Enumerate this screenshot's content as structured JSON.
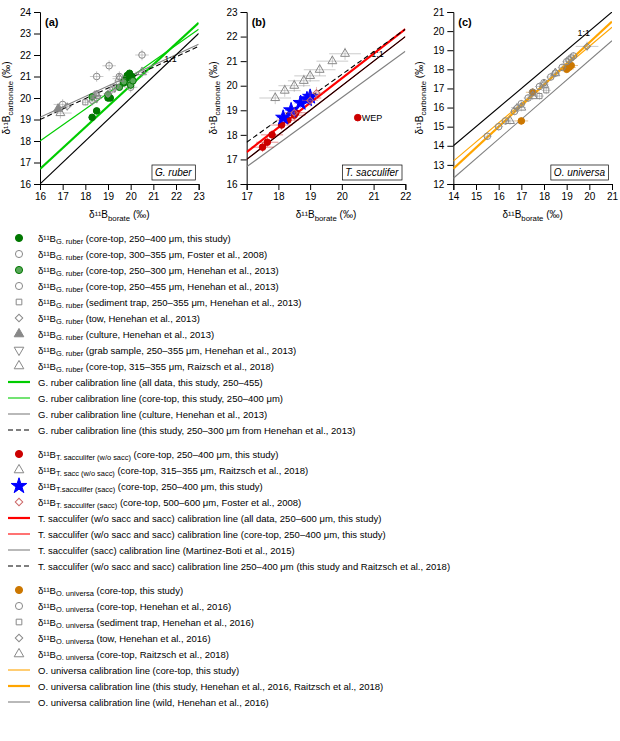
{
  "chart_data": [
    {
      "type": "scatter",
      "title": "(a)",
      "subtitle": "G. ruber",
      "x_label": "δ¹¹Bborate (‰)",
      "y_label": "δ¹¹Bcarbonate (‰)",
      "xlim": [
        16,
        23
      ],
      "ylim": [
        16,
        24
      ],
      "xticks": [
        16,
        17,
        18,
        19,
        20,
        21,
        22,
        23
      ],
      "yticks": [
        16,
        17,
        18,
        19,
        20,
        21,
        22,
        23,
        24
      ],
      "legend": "bottom",
      "annotations": [
        {
          "text": "1:1",
          "x": 21.3,
          "y": 21.8
        }
      ],
      "series": [
        {
          "name": "δ¹¹BG. ruber (core-top, 250–400 μm, this study)",
          "color": "#007700",
          "marker": "circle",
          "x": [
            18.3,
            18.5,
            19.0,
            19.1,
            19.7,
            19.75,
            19.8,
            19.85,
            19.95,
            20.05
          ],
          "values": [
            19.1,
            19.4,
            20.0,
            20.0,
            20.7,
            20.85,
            20.9,
            21.05,
            21.15,
            21.0
          ],
          "x_err": [
            0.15,
            0.15,
            0.15,
            0.15,
            0.15,
            0.15,
            0.15,
            0.15,
            0.15,
            0.15
          ],
          "y_err": [
            0.15,
            0.15,
            0.15,
            0.15,
            0.15,
            0.15,
            0.15,
            0.15,
            0.15,
            0.15
          ]
        },
        {
          "name": "δ¹¹BG. ruber (core-top, 300–355 μm, Foster et al., 2008)",
          "color": "#888888",
          "marker": "circle-open",
          "x": [
            18.5,
            19.05,
            19.5,
            20.5,
            17.0,
            20.0
          ],
          "values": [
            21.0,
            21.5,
            21.0,
            22.0,
            19.7,
            20.5
          ],
          "x_err": [
            0.3,
            0.3,
            0.3,
            0.3,
            0.4,
            0.3
          ],
          "y_err": [
            0.25,
            0.25,
            0.25,
            0.25,
            0.25,
            0.25
          ]
        },
        {
          "name": "δ¹¹BG. ruber (core-top, 250–300 μm, Henehan et al., 2013)",
          "color": "#007700",
          "marker": "circle-light",
          "x": [
            18.3,
            19.0,
            19.5,
            19.7,
            20.0,
            20.1
          ],
          "values": [
            20.05,
            20.15,
            20.5,
            20.75,
            20.6,
            20.8
          ],
          "x_err": [
            0.15,
            0.15,
            0.15,
            0.15,
            0.15,
            0.15
          ],
          "y_err": [
            0.15,
            0.15,
            0.15,
            0.15,
            0.15,
            0.15
          ]
        },
        {
          "name": "δ¹¹BG. ruber (core-top, 250–455 μm, Henehan et al., 2013)",
          "color": "#888888",
          "marker": "circle-open",
          "x": [],
          "values": []
        },
        {
          "name": "δ¹¹BG. ruber (sediment trap, 250–355 μm, Henehan et al., 2013)",
          "color": "#888888",
          "marker": "square-open",
          "x": [
            18.0,
            18.5,
            19.2
          ],
          "values": [
            19.8,
            20.2,
            20.4
          ],
          "x_err": [
            0.15,
            0.15,
            0.15
          ],
          "y_err": [
            0.15,
            0.15,
            0.15
          ]
        },
        {
          "name": "δ¹¹BG. ruber (tow, Henehan et al., 2013)",
          "color": "#888888",
          "marker": "diamond-open",
          "x": [
            17.2,
            18.3,
            19.0
          ],
          "values": [
            19.6,
            19.85,
            20.2
          ],
          "x_err": [
            0.2,
            0.2,
            0.2
          ],
          "y_err": [
            0.2,
            0.2,
            0.2
          ]
        },
        {
          "name": "δ¹¹BG. ruber (culture, Henehan et al., 2013)",
          "color": "#888888",
          "marker": "triangle",
          "x": [
            16.8
          ],
          "values": [
            19.5
          ]
        },
        {
          "name": "δ¹¹BG. ruber (grab sample, 250–355 μm, Henehan et al., 2013)",
          "color": "#888888",
          "marker": "triangle-down-open",
          "x": [
            18.5,
            19.3
          ],
          "values": [
            20.0,
            20.5
          ],
          "x_err": [
            0.2,
            0.2
          ],
          "y_err": [
            0.2,
            0.2
          ]
        },
        {
          "name": "δ¹¹BG. ruber (core-top, 315–355 μm, Raizsch et al., 2018)",
          "color": "#888888",
          "marker": "triangle-open",
          "x": [
            16.9,
            18.5,
            19.5,
            20.5
          ],
          "values": [
            19.3,
            20.1,
            20.9,
            21.2
          ],
          "x_err": [
            0.5,
            0.3,
            0.3,
            0.3
          ],
          "y_err": [
            0.25,
            0.25,
            0.25,
            0.25
          ]
        },
        {
          "name": "G. ruber calibration line (all data, this study, 250–455)",
          "type": "line",
          "color": "#00cc00",
          "line_style": "thick",
          "x": [
            16,
            23
          ],
          "values": [
            16.7,
            23.5
          ]
        },
        {
          "name": "G. ruber calibration line (core-top, this study, 250–400 μm)",
          "type": "line",
          "color": "#00cc00",
          "line_style": "solid",
          "x": [
            16,
            23
          ],
          "values": [
            18.0,
            23.2
          ]
        },
        {
          "name": "G. ruber calibration line (culture, Henehan et al., 2013)",
          "type": "line",
          "color": "gray",
          "line_style": "solid",
          "x": [
            16,
            23
          ],
          "values": [
            19.1,
            22.5
          ]
        },
        {
          "name": "G. ruber calibration line (this study, 250–300 μm from Henehan et al., 2013)",
          "type": "line",
          "color": "black",
          "line_style": "dashed",
          "x": [
            16,
            23
          ],
          "values": [
            19.0,
            22.4
          ]
        },
        {
          "type": "line",
          "color": "black",
          "line_style": "solid",
          "x": [
            16,
            23
          ],
          "values": [
            16,
            23
          ]
        }
      ]
    },
    {
      "type": "scatter",
      "title": "(b)",
      "subtitle": "T. sacculifer",
      "x_label": "δ¹¹Bborate (‰)",
      "y_label": "δ¹¹Bcarbonate (‰)",
      "xlim": [
        17,
        22
      ],
      "ylim": [
        16,
        23
      ],
      "xticks": [
        17,
        18,
        19,
        20,
        21,
        22
      ],
      "yticks": [
        16,
        17,
        18,
        19,
        20,
        21,
        22,
        23
      ],
      "legend": "bottom",
      "annotations": [
        {
          "text": "1:1",
          "x": 20.8,
          "y": 21.3
        },
        {
          "text": "WEP",
          "x": 20.5,
          "y": 18.7
        }
      ],
      "series": [
        {
          "name": "δ¹¹BT. sacculifer (w/o sacc) (core-top, 250–400 μm, this study)",
          "color": "#cc0000",
          "marker": "circle",
          "x": [
            17.5,
            17.65,
            17.8,
            18.1,
            18.3,
            18.5,
            18.55,
            19.0
          ],
          "values": [
            17.5,
            17.7,
            18.0,
            18.4,
            18.6,
            18.8,
            18.9,
            19.5
          ],
          "x_err": [
            0.35,
            0.35,
            0.35,
            0.35,
            0.35,
            0.35,
            0.35,
            0.35
          ],
          "y_err": [
            0.2,
            0.2,
            0.2,
            0.2,
            0.2,
            0.2,
            0.2,
            0.2
          ]
        },
        {
          "color": "#cc0000",
          "marker": "circle",
          "x": [
            20.5
          ],
          "values": [
            18.7
          ]
        },
        {
          "name": "δ¹¹BT. sacc (w/o sacc) (core-top, 315–355 μm, Raitzsch et al., 2018)",
          "color": "#888888",
          "marker": "triangle-open",
          "x": [
            17.9,
            18.2,
            18.5,
            18.8,
            19.0,
            19.3,
            19.7,
            20.1
          ],
          "values": [
            19.5,
            19.8,
            20.0,
            20.2,
            20.4,
            20.65,
            21.0,
            21.3
          ],
          "x_err": [
            0.5,
            0.5,
            0.5,
            0.5,
            0.5,
            0.5,
            0.5,
            0.5
          ],
          "y_err": [
            0.25,
            0.25,
            0.25,
            0.25,
            0.25,
            0.25,
            0.25,
            0.25
          ]
        },
        {
          "name": "δ¹¹BT.sacculifer (sacc) (core-top, 250–400 μm, this study)",
          "color": "blue",
          "marker": "star",
          "x": [
            18.15,
            18.4,
            18.7,
            18.9,
            19.0
          ],
          "values": [
            18.7,
            19.0,
            19.3,
            19.45,
            19.55
          ],
          "x_err": [
            0.2,
            0.2,
            0.2,
            0.2,
            0.2
          ],
          "y_err": [
            0.2,
            0.2,
            0.2,
            0.2,
            0.2
          ]
        },
        {
          "name": "δ¹¹BT. sacculifer (sacc) (core-top, 500–600 μm, Foster et al., 2008)",
          "color": "#cc6666",
          "marker": "diamond-open",
          "x": [
            18.5,
            19.0,
            19.2
          ],
          "values": [
            18.9,
            19.4,
            19.7
          ],
          "x_err": [
            0.25,
            0.25,
            0.25
          ],
          "y_err": [
            0.25,
            0.25,
            0.25
          ]
        },
        {
          "name": "T. sacculifer (w/o sacc and sacc) calibration line (all data, 250–600 μm, this study)",
          "type": "line",
          "color": "red",
          "line_style": "thick",
          "x": [
            17,
            22
          ],
          "values": [
            17.3,
            22.3
          ]
        },
        {
          "name": "T. sacculifer (w/o sacc and sacc) calibration line (core-top, 250–400 μm, this study)",
          "type": "line",
          "color": "red",
          "line_style": "solid",
          "x": [
            17,
            22
          ],
          "values": [
            17.0,
            22.0
          ]
        },
        {
          "name": "T. sacculifer (sacc) calibration line (Martinez-Boti et al., 2015)",
          "type": "line",
          "color": "gray",
          "line_style": "solid",
          "x": [
            17,
            22
          ],
          "values": [
            16.7,
            21.4
          ]
        },
        {
          "name": "T. sacculifer (w/o sacc and sacc) calibration line 250–400 μm (this study and Raitzsch et al., 2018)",
          "type": "line",
          "color": "black",
          "line_style": "dashed",
          "x": [
            17,
            22
          ],
          "values": [
            17.7,
            22.3
          ]
        },
        {
          "type": "line",
          "color": "black",
          "line_style": "solid",
          "x": [
            17,
            22
          ],
          "values": [
            17,
            22
          ]
        }
      ]
    },
    {
      "type": "scatter",
      "title": "(c)",
      "subtitle": "O. universa",
      "x_label": "δ¹¹Bborate (‰)",
      "y_label": "δ¹¹Bcarbonate (‰)",
      "xlim": [
        14,
        21
      ],
      "ylim": [
        12,
        21
      ],
      "xticks": [
        14,
        15,
        16,
        17,
        18,
        19,
        20,
        21
      ],
      "yticks": [
        12,
        13,
        14,
        15,
        16,
        17,
        18,
        19,
        20,
        21
      ],
      "legend": "bottom",
      "annotations": [
        {
          "text": "1:1",
          "x": 19.3,
          "y": 19.9
        }
      ],
      "series": [
        {
          "name": "δ¹¹BO. universa (core-top, this study)",
          "color": "#cc7700",
          "marker": "circle",
          "x": [
            17.0,
            17.5,
            19.0,
            19.1,
            19.2
          ],
          "values": [
            15.3,
            16.8,
            18.0,
            18.1,
            18.2
          ],
          "x_err": [
            0.3,
            0.3,
            0.3,
            0.3,
            0.3
          ],
          "y_err": [
            0.2,
            0.2,
            0.2,
            0.2,
            0.2
          ]
        },
        {
          "name": "δ¹¹BO. universa (core-top, Henehan et al., 2016)",
          "color": "#888888",
          "marker": "circle-open",
          "x": [
            15.5,
            16.0,
            16.3,
            16.7,
            17.0,
            17.3,
            17.5,
            17.8,
            18.0,
            18.3,
            18.5,
            18.8,
            19.0,
            19.1,
            19.2,
            19.3
          ],
          "values": [
            14.5,
            15.0,
            15.3,
            15.8,
            16.2,
            16.5,
            16.8,
            17.1,
            17.3,
            17.6,
            17.8,
            18.1,
            18.4,
            18.5,
            18.6,
            18.7
          ],
          "x_err": [
            0.2,
            0.2,
            0.2,
            0.2,
            0.2,
            0.2,
            0.2,
            0.2,
            0.2,
            0.2,
            0.2,
            0.2,
            0.2,
            0.2,
            0.2,
            0.2
          ],
          "y_err": [
            0.2,
            0.2,
            0.2,
            0.2,
            0.2,
            0.2,
            0.2,
            0.2,
            0.2,
            0.2,
            0.2,
            0.2,
            0.2,
            0.2,
            0.2,
            0.2
          ]
        },
        {
          "name": "δ¹¹BO. universa (sediment trap, Henehan et al., 2016)",
          "color": "#888888",
          "marker": "square-open",
          "x": [
            17.8,
            18.1
          ],
          "values": [
            16.6,
            16.9
          ],
          "x_err": [
            0.2,
            0.2
          ],
          "y_err": [
            0.2,
            0.2
          ]
        },
        {
          "name": "δ¹¹BO. universa (tow, Henehan et al., 2016)",
          "color": "#888888",
          "marker": "diamond-open",
          "x": [
            16.8,
            19.9
          ],
          "values": [
            16.0,
            19.2
          ],
          "x_err": [
            0.25,
            0.5
          ],
          "y_err": [
            0.25,
            0.25
          ]
        },
        {
          "name": "δ¹¹BO. universa (core-top, Raitzsch et al., 2018)",
          "color": "#888888",
          "marker": "triangle-open",
          "x": [
            16.5,
            17.0,
            17.5,
            18.0,
            18.5
          ],
          "values": [
            15.3,
            16.0,
            16.6,
            17.2,
            17.8
          ],
          "x_err": [
            0.2,
            0.2,
            0.2,
            0.2,
            0.2
          ],
          "y_err": [
            0.2,
            0.2,
            0.2,
            0.2,
            0.2
          ]
        },
        {
          "name": "O. universa calibration line (core-top, this study)",
          "type": "line",
          "color": "orange",
          "line_style": "solid",
          "x": [
            14,
            21
          ],
          "values": [
            13.2,
            20.2
          ]
        },
        {
          "name": "O. universa calibration line (this study, Henehan et al., 2016, Raitzsch et al., 2018)",
          "type": "line",
          "color": "orange",
          "line_style": "thick",
          "x": [
            14,
            21
          ],
          "values": [
            12.8,
            20.5
          ]
        },
        {
          "name": "O. universa calibration line (wild, Henehan et al., 2016)",
          "type": "line",
          "color": "gray",
          "line_style": "solid",
          "x": [
            14,
            21
          ],
          "values": [
            12.3,
            19.5
          ]
        },
        {
          "type": "line",
          "color": "black",
          "line_style": "solid",
          "x": [
            14,
            21
          ],
          "values": [
            14,
            21
          ]
        }
      ]
    }
  ]
}
